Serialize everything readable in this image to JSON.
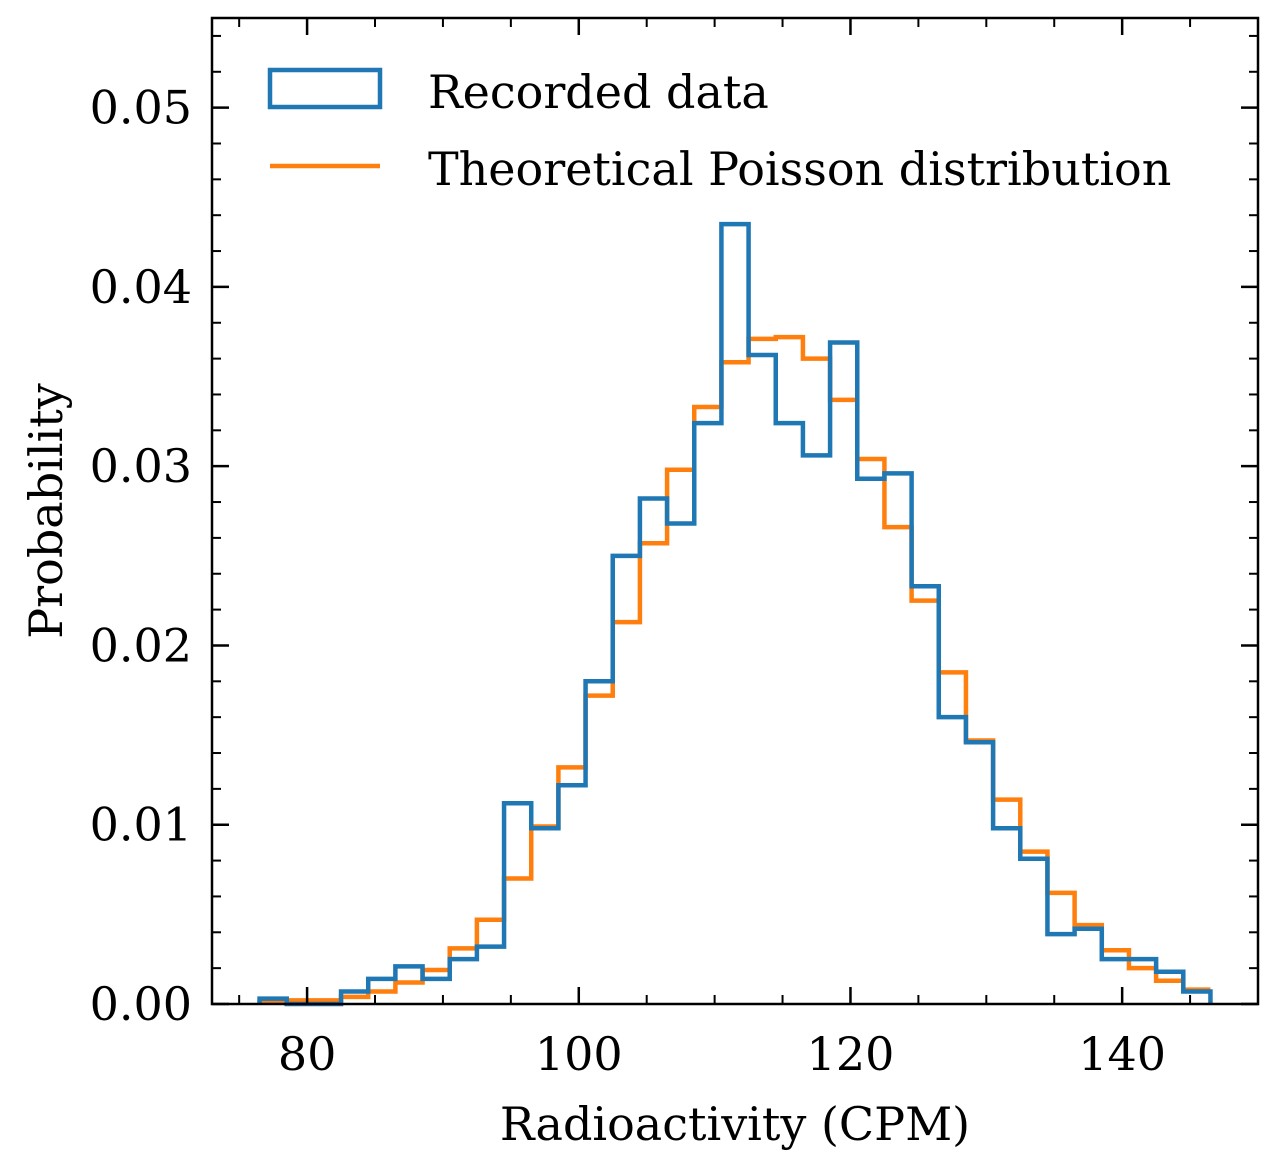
{
  "chart_data": {
    "type": "histogram",
    "title": "",
    "xlabel": "Radioactivity (CPM)",
    "ylabel": "Probability",
    "xlim": [
      73,
      150
    ],
    "ylim": [
      0,
      0.055
    ],
    "x_ticks": [
      80,
      100,
      120,
      140
    ],
    "x_tick_labels": [
      "80",
      "100",
      "120",
      "140"
    ],
    "y_ticks": [
      0,
      0.01,
      0.02,
      0.03,
      0.04,
      0.05
    ],
    "y_tick_labels": [
      "0.00",
      "0.01",
      "0.02",
      "0.03",
      "0.04",
      "0.05"
    ],
    "legend_position": "top-left",
    "series": [
      {
        "name": "Recorded data",
        "color": "#1f77b4",
        "style": "step",
        "bin_edges": [
          76.5,
          78.5,
          80.5,
          82.5,
          84.5,
          86.5,
          88.5,
          90.5,
          92.5,
          94.5,
          96.5,
          98.5,
          100.5,
          102.5,
          104.5,
          106.5,
          108.5,
          110.5,
          112.5,
          114.5,
          116.5,
          118.5,
          120.5,
          122.5,
          124.5,
          126.5,
          128.5,
          130.5,
          132.5,
          134.5,
          136.5,
          138.5,
          140.5,
          142.5,
          144.5,
          146.5
        ],
        "values": [
          0.0003,
          0.0,
          0.0,
          0.0007,
          0.0014,
          0.0021,
          0.0014,
          0.0025,
          0.0032,
          0.0112,
          0.0098,
          0.0122,
          0.018,
          0.025,
          0.0282,
          0.0268,
          0.0324,
          0.0435,
          0.0362,
          0.0324,
          0.0306,
          0.0369,
          0.0293,
          0.0296,
          0.0233,
          0.016,
          0.0146,
          0.0098,
          0.0081,
          0.0039,
          0.0042,
          0.0025,
          0.0025,
          0.0018,
          0.0007
        ]
      },
      {
        "name": "Theoretical Poisson distribution",
        "color": "#ff7f0e",
        "style": "step",
        "bin_edges": [
          76.5,
          78.5,
          80.5,
          82.5,
          84.5,
          86.5,
          88.5,
          90.5,
          92.5,
          94.5,
          96.5,
          98.5,
          100.5,
          102.5,
          104.5,
          106.5,
          108.5,
          110.5,
          112.5,
          114.5,
          116.5,
          118.5,
          120.5,
          122.5,
          124.5,
          126.5,
          128.5,
          130.5,
          132.5,
          134.5,
          136.5,
          138.5,
          140.5,
          142.5,
          144.5,
          146.5
        ],
        "values": [
          0.0001,
          0.0002,
          0.0002,
          0.0004,
          0.0007,
          0.0012,
          0.0019,
          0.0031,
          0.0047,
          0.007,
          0.0099,
          0.0132,
          0.0172,
          0.0213,
          0.0257,
          0.0298,
          0.0333,
          0.0358,
          0.0371,
          0.0372,
          0.036,
          0.0337,
          0.0304,
          0.0266,
          0.0225,
          0.0185,
          0.0147,
          0.0114,
          0.0085,
          0.0062,
          0.0044,
          0.003,
          0.002,
          0.0013,
          0.0008
        ]
      }
    ]
  }
}
